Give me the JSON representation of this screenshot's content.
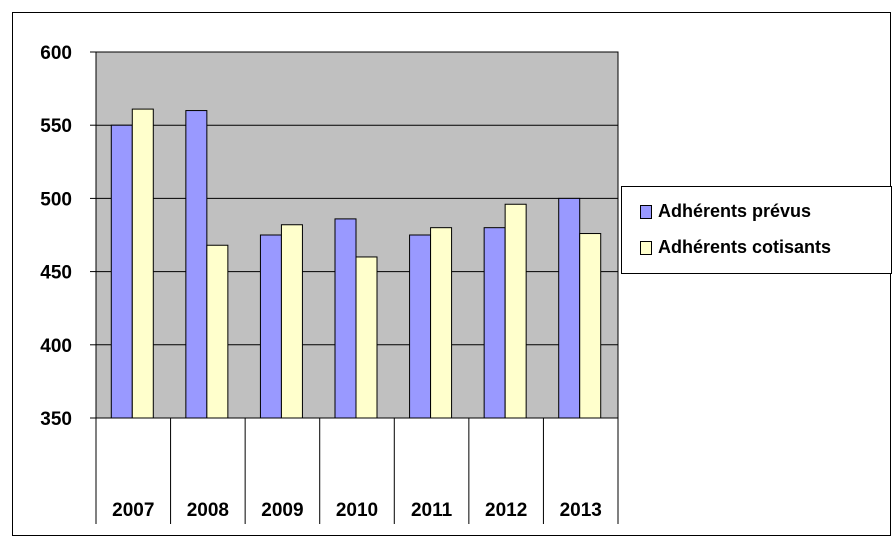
{
  "chart_data": {
    "type": "bar",
    "categories": [
      "2007",
      "2008",
      "2009",
      "2010",
      "2011",
      "2012",
      "2013"
    ],
    "series": [
      {
        "name": "Adhérents prévus",
        "color": "#9999ff",
        "values": [
          550,
          560,
          475,
          486,
          475,
          480,
          500
        ]
      },
      {
        "name": "Adhérents cotisants",
        "color": "#ffffcc",
        "values": [
          561,
          468,
          482,
          460,
          480,
          496,
          476
        ]
      }
    ],
    "title": "",
    "xlabel": "",
    "ylabel": "",
    "ylim": [
      350,
      600
    ],
    "yticks": [
      "600",
      "550",
      "500",
      "450",
      "400",
      "350"
    ],
    "grid": true,
    "plot_background": "#c0c0c0",
    "legend_position": "right"
  }
}
